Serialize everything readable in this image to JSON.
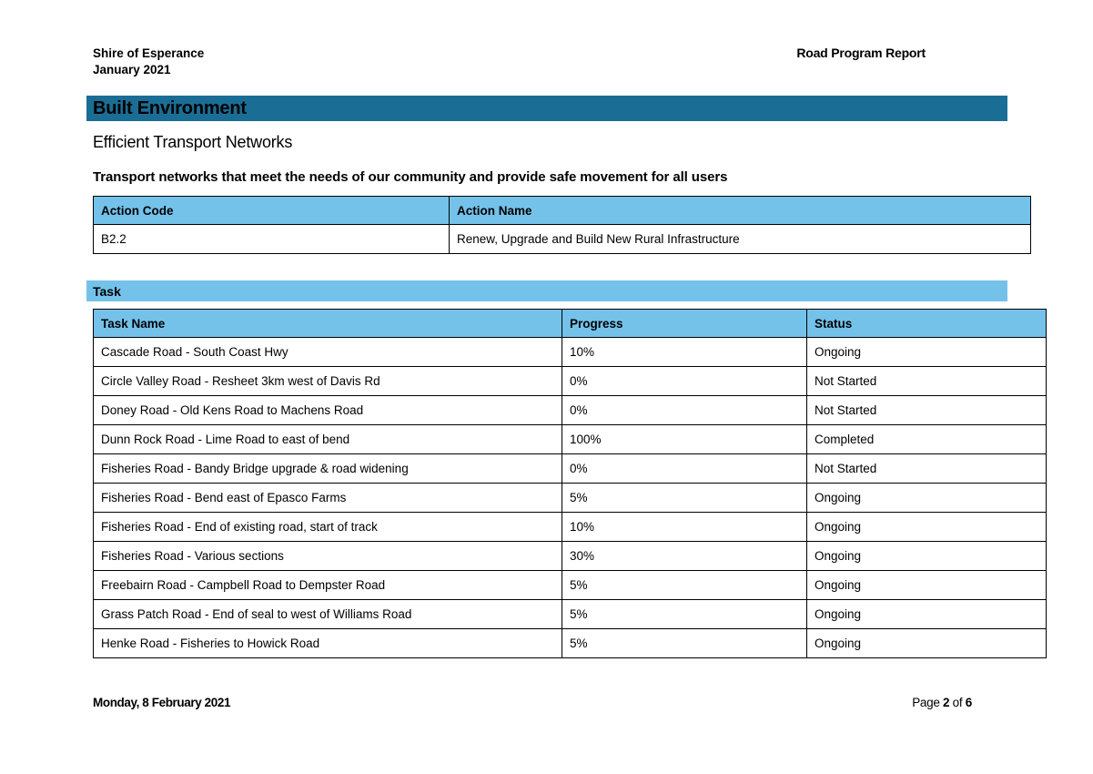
{
  "header": {
    "org": "Shire of Esperance",
    "period": "January 2021",
    "report_title": "Road Program Report"
  },
  "section_banner": "Built Environment",
  "subsection_title": "Efficient Transport Networks",
  "subsection_desc": "Transport networks that meet the needs of our community and provide safe movement for all users",
  "action_table": {
    "headers": [
      "Action Code",
      "Action Name"
    ],
    "rows": [
      [
        "B2.2",
        "Renew, Upgrade and Build New Rural Infrastructure"
      ]
    ]
  },
  "task_banner": "Task",
  "task_table": {
    "headers": [
      "Task Name",
      "Progress",
      "Status"
    ],
    "rows": [
      [
        "Cascade Road - South Coast Hwy",
        "10%",
        "Ongoing"
      ],
      [
        "Circle Valley Road - Resheet 3km west of Davis Rd",
        "0%",
        "Not Started"
      ],
      [
        "Doney Road - Old Kens Road to Machens Road",
        "0%",
        "Not Started"
      ],
      [
        "Dunn Rock Road - Lime Road to east of bend",
        "100%",
        "Completed"
      ],
      [
        "Fisheries Road - Bandy Bridge upgrade & road widening",
        "0%",
        "Not Started"
      ],
      [
        "Fisheries Road - Bend east of Epasco Farms",
        "5%",
        "Ongoing"
      ],
      [
        "Fisheries Road - End of existing road, start of track",
        "10%",
        "Ongoing"
      ],
      [
        "Fisheries Road - Various sections",
        "30%",
        "Ongoing"
      ],
      [
        "Freebairn Road - Campbell Road to Dempster Road",
        "5%",
        "Ongoing"
      ],
      [
        "Grass Patch Road - End of seal to west of Williams Road",
        "5%",
        "Ongoing"
      ],
      [
        "Henke Road - Fisheries to Howick Road",
        "5%",
        "Ongoing"
      ]
    ]
  },
  "footer": {
    "date": "Monday, 8 February 2021",
    "page_word": "Page ",
    "page_number": "2",
    "of_word": " of ",
    "page_total": "6"
  },
  "colors": {
    "banner_dark": "#1A6E96",
    "banner_light": "#74C2EA",
    "table_header_bg": "#74C2EA",
    "border": "#000000"
  }
}
